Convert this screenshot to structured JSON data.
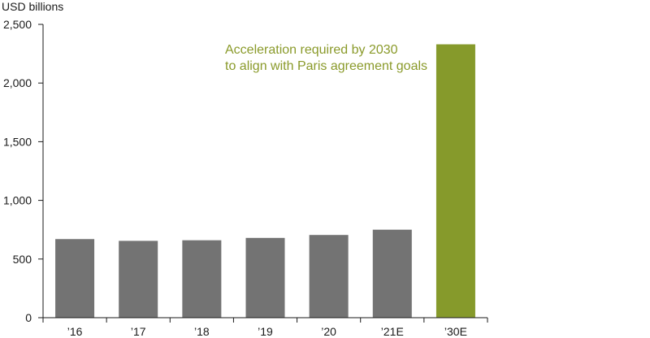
{
  "chart_data": {
    "type": "bar",
    "ylabel": "USD billions",
    "categories": [
      "’16",
      "’17",
      "’18",
      "’19",
      "’20",
      "’21E",
      "’30E"
    ],
    "values": [
      670,
      655,
      660,
      680,
      705,
      750,
      2330
    ],
    "ylim": [
      0,
      2500
    ],
    "yticks": [
      "0",
      "500",
      "1,000",
      "1,500",
      "2,000",
      "2,500"
    ],
    "ytick_values": [
      0,
      500,
      1000,
      1500,
      2000,
      2500
    ],
    "annotation": {
      "line1": "Acceleration required by 2030",
      "line2": "to align with Paris agreement goals"
    },
    "grid": false,
    "colors": {
      "historical": "#737373",
      "target": "#869a2b",
      "annotation": "#8a9a2a",
      "axis": "#1a1a1a"
    },
    "highlight_category": "’30E"
  }
}
